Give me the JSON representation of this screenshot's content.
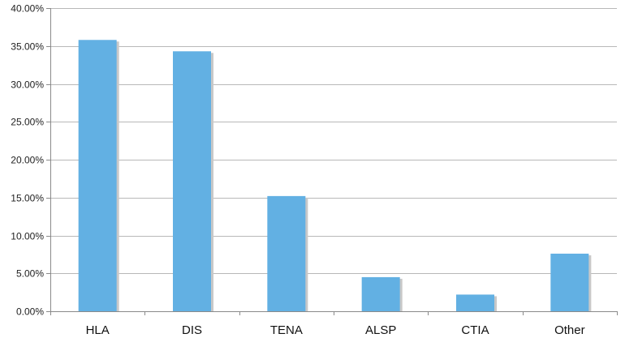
{
  "chart_data": {
    "type": "bar",
    "categories": [
      "HLA",
      "DIS",
      "TENA",
      "ALSP",
      "CTIA",
      "Other"
    ],
    "values": [
      35.8,
      34.3,
      15.2,
      4.5,
      2.2,
      7.6
    ],
    "y_tick_labels": [
      "0.00%",
      "5.00%",
      "10.00%",
      "15.00%",
      "20.00%",
      "25.00%",
      "30.00%",
      "35.00%",
      "40.00%"
    ],
    "y_ticks": [
      0,
      5,
      10,
      15,
      20,
      25,
      30,
      35,
      40
    ],
    "ylim": [
      0,
      40
    ],
    "grid": true,
    "legend": "none",
    "bar_color": "#62b0e3",
    "bar_shadow_color": "#c8c8c8"
  }
}
